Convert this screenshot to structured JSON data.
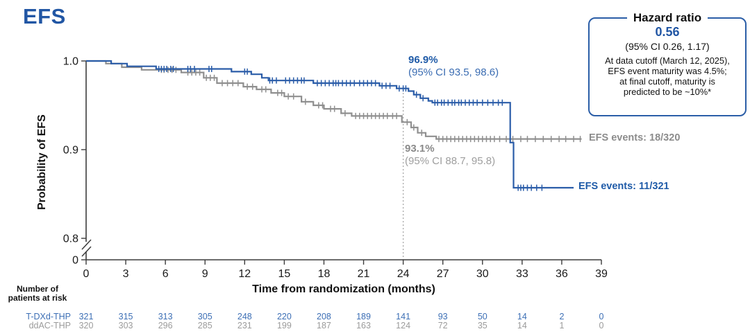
{
  "title": "EFS",
  "colors": {
    "blue": "#2A5CA8",
    "blue_text": "#1F5BA8",
    "gray": "#8F8F8F",
    "gray_text": "#8C8C8C",
    "risk_blue": "#3D6FB5",
    "risk_gray": "#9B9B9B",
    "axis": "#3c3c3c",
    "dotted_line": "#A8A8A8"
  },
  "axes": {
    "y_label": "Probability of EFS",
    "x_label": "Time from randomization (months)",
    "y_tick_labels": [
      "1.0",
      "0.9",
      "0.8"
    ],
    "y_tick_values": [
      1.0,
      0.9,
      0.8
    ],
    "y_zero_label": "0"
  },
  "annotations": {
    "tdxd_pct": "96.9%",
    "tdxd_ci": "(95% CI 93.5, 98.6)",
    "ddac_pct": "93.1%",
    "ddac_ci": "(95% CI 88.7, 95.8)",
    "tdxd_events": "EFS events: 11/321",
    "ddac_events": "EFS events: 18/320"
  },
  "hazard_box": {
    "title": "Hazard ratio",
    "value": "0.56",
    "ci": "(95% CI 0.26, 1.17)",
    "note_lines": [
      "At data cutoff (March 12, 2025),",
      "EFS event maturity was 4.5%;",
      "at final cutoff, maturity is",
      "predicted to be ~10%*"
    ]
  },
  "risk_table": {
    "header_line1": "Number of",
    "header_line2": "patients at risk",
    "rows": [
      {
        "label": "T-DXd-THP",
        "color": "#3D6FB5",
        "values": [
          321,
          315,
          313,
          305,
          248,
          220,
          208,
          189,
          141,
          93,
          50,
          14,
          2,
          0
        ]
      },
      {
        "label": "ddAC-THP",
        "color": "#9B9B9B",
        "values": [
          320,
          303,
          296,
          285,
          231,
          199,
          187,
          163,
          124,
          72,
          35,
          14,
          1,
          0
        ]
      }
    ]
  },
  "chart_data": {
    "type": "line",
    "subtype": "kaplan-meier-step",
    "title": "EFS",
    "xlabel": "Time from randomization (months)",
    "ylabel": "Probability of EFS",
    "xlim": [
      0,
      39
    ],
    "ylim": [
      0.8,
      1.0
    ],
    "y_axis_break_to_zero": true,
    "x_ticks": [
      0,
      3,
      6,
      9,
      12,
      15,
      18,
      21,
      24,
      27,
      30,
      33,
      36,
      39
    ],
    "y_ticks": [
      1.0,
      0.9,
      0.8,
      0
    ],
    "landmark_vline_month": 24,
    "series": [
      {
        "name": "T-DXd-THP",
        "color": "#2A5CA8",
        "events": "11/321",
        "landmark_24mo": {
          "value": 96.9,
          "ci_low": 93.5,
          "ci_high": 98.6
        },
        "steps": [
          [
            0,
            1.0
          ],
          [
            1.9,
            0.997
          ],
          [
            3.1,
            0.994
          ],
          [
            5.3,
            0.991
          ],
          [
            11.0,
            0.988
          ],
          [
            12.5,
            0.985
          ],
          [
            13.3,
            0.981
          ],
          [
            13.8,
            0.978
          ],
          [
            17.2,
            0.975
          ],
          [
            22.2,
            0.972
          ],
          [
            23.5,
            0.969
          ],
          [
            24.4,
            0.966
          ],
          [
            24.8,
            0.962
          ],
          [
            25.3,
            0.958
          ],
          [
            25.9,
            0.955
          ],
          [
            26.2,
            0.953
          ],
          [
            32.1,
            0.908
          ],
          [
            32.35,
            0.857
          ],
          [
            36.9,
            0.857
          ]
        ],
        "censor_months": [
          5.5,
          5.7,
          5.9,
          6.1,
          6.4,
          6.6,
          7.7,
          7.9,
          8.2,
          9.3,
          9.5,
          12.0,
          12.2,
          13.9,
          14.1,
          14.4,
          15.1,
          15.4,
          15.7,
          16.0,
          16.3,
          16.5,
          17.5,
          17.8,
          18.1,
          18.4,
          18.7,
          18.9,
          19.1,
          19.4,
          19.7,
          20.0,
          20.3,
          20.7,
          21.0,
          21.3,
          21.6,
          21.9,
          22.4,
          22.7,
          23.0,
          23.7,
          24.0,
          24.2,
          25.0,
          25.5,
          26.4,
          26.6,
          26.9,
          27.1,
          27.4,
          27.7,
          27.9,
          28.2,
          28.4,
          28.7,
          29.0,
          29.3,
          29.6,
          30.0,
          30.4,
          30.8,
          31.2,
          31.5,
          32.7,
          32.9,
          33.1,
          33.4,
          33.7,
          34.1,
          34.5
        ]
      },
      {
        "name": "ddAC-THP",
        "color": "#8F8F8F",
        "events": "18/320",
        "landmark_24mo": {
          "value": 93.1,
          "ci_low": 88.7,
          "ci_high": 95.8
        },
        "steps": [
          [
            0,
            1.0
          ],
          [
            1.5,
            0.997
          ],
          [
            2.7,
            0.993
          ],
          [
            4.2,
            0.99
          ],
          [
            7.2,
            0.987
          ],
          [
            8.9,
            0.981
          ],
          [
            9.9,
            0.975
          ],
          [
            11.9,
            0.971
          ],
          [
            12.9,
            0.968
          ],
          [
            14.0,
            0.964
          ],
          [
            15.0,
            0.96
          ],
          [
            16.3,
            0.954
          ],
          [
            17.2,
            0.95
          ],
          [
            18.0,
            0.946
          ],
          [
            19.3,
            0.941
          ],
          [
            20.1,
            0.938
          ],
          [
            23.9,
            0.931
          ],
          [
            24.6,
            0.925
          ],
          [
            25.1,
            0.919
          ],
          [
            25.7,
            0.915
          ],
          [
            26.5,
            0.912
          ],
          [
            37.5,
            0.912
          ]
        ],
        "censor_months": [
          5.7,
          5.9,
          6.2,
          6.5,
          6.8,
          7.7,
          8.0,
          8.3,
          8.6,
          9.1,
          9.4,
          9.7,
          10.3,
          10.7,
          11.1,
          11.5,
          12.2,
          12.6,
          13.3,
          13.6,
          14.5,
          14.8,
          15.3,
          15.7,
          16.6,
          17.6,
          17.9,
          18.5,
          18.8,
          19.6,
          20.4,
          20.7,
          21.0,
          21.3,
          21.6,
          21.9,
          22.2,
          22.5,
          22.8,
          23.2,
          23.5,
          24.3,
          24.8,
          25.4,
          26.7,
          27.0,
          27.3,
          27.6,
          27.9,
          28.2,
          28.5,
          28.8,
          29.1,
          29.4,
          29.7,
          30.0,
          30.3,
          30.6,
          30.9,
          31.3,
          31.8,
          32.3,
          32.9,
          33.4,
          34.0,
          34.6,
          35.2,
          35.8,
          36.3,
          36.9,
          37.4
        ]
      }
    ]
  }
}
